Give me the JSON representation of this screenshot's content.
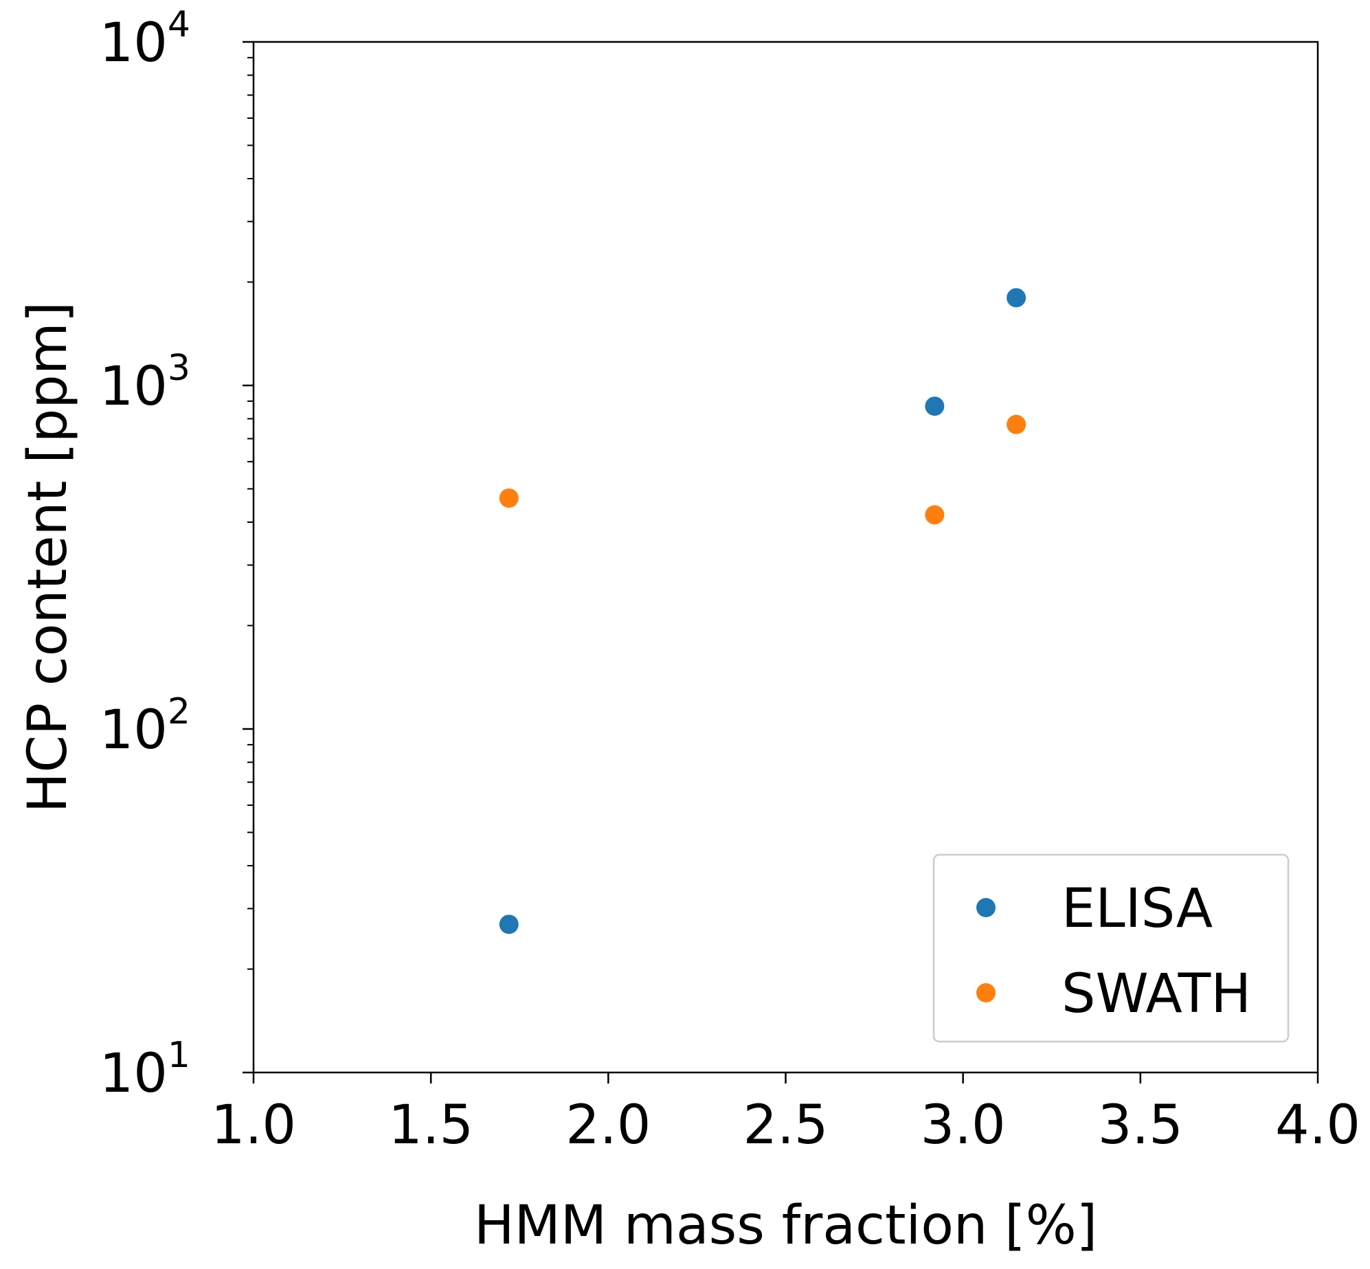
{
  "chart_data": {
    "type": "scatter",
    "title": "",
    "xlabel": "HMM mass fraction [%]",
    "ylabel": "HCP content [ppm]",
    "xlim": [
      1.0,
      4.0
    ],
    "ylim": [
      10,
      10000
    ],
    "yscale": "log",
    "x_ticks": [
      "1.0",
      "1.5",
      "2.0",
      "2.5",
      "3.0",
      "3.5",
      "4.0"
    ],
    "y_ticks": [
      {
        "base": "10",
        "exp": "1"
      },
      {
        "base": "10",
        "exp": "2"
      },
      {
        "base": "10",
        "exp": "3"
      },
      {
        "base": "10",
        "exp": "4"
      }
    ],
    "grid": false,
    "legend_position": "lower-right",
    "series": [
      {
        "name": "ELISA",
        "color": "#1f77b4",
        "points": [
          {
            "x": 1.72,
            "y": 27
          },
          {
            "x": 2.92,
            "y": 870
          },
          {
            "x": 3.15,
            "y": 1800
          }
        ]
      },
      {
        "name": "SWATH",
        "color": "#ff7f0e",
        "points": [
          {
            "x": 1.72,
            "y": 470
          },
          {
            "x": 2.92,
            "y": 420
          },
          {
            "x": 3.15,
            "y": 770
          }
        ]
      }
    ]
  }
}
